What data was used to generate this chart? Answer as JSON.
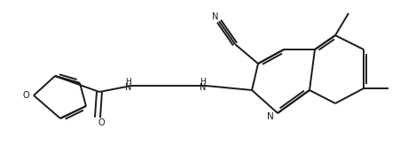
{
  "bg_color": "#ffffff",
  "line_color": "#1a1a1a",
  "line_width": 1.4,
  "figsize": [
    4.52,
    1.72
  ],
  "dpi": 100,
  "xlim": [
    0,
    452
  ],
  "ylim": [
    0,
    172
  ]
}
